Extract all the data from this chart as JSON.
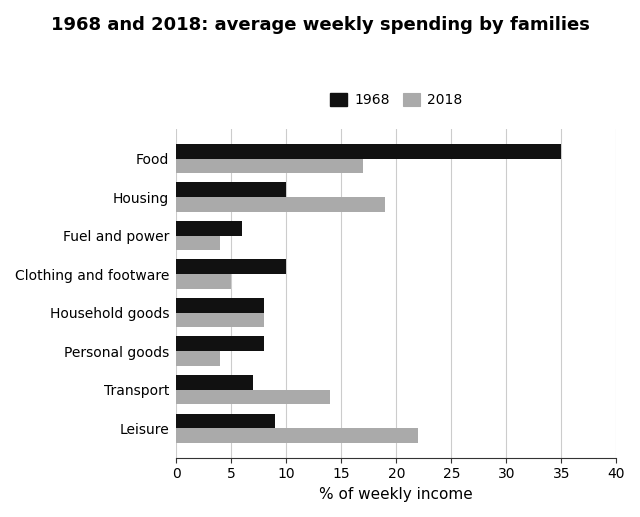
{
  "title": "1968 and 2018: average weekly spending by families",
  "categories": [
    "Food",
    "Housing",
    "Fuel and power",
    "Clothing and footware",
    "Household goods",
    "Personal goods",
    "Transport",
    "Leisure"
  ],
  "values_1968": [
    35,
    10,
    6,
    10,
    8,
    8,
    7,
    9
  ],
  "values_2018": [
    17,
    19,
    4,
    5,
    8,
    4,
    14,
    22
  ],
  "color_1968": "#111111",
  "color_2018": "#aaaaaa",
  "xlabel": "% of weekly income",
  "xlim": [
    0,
    40
  ],
  "xticks": [
    0,
    5,
    10,
    15,
    20,
    25,
    30,
    35,
    40
  ],
  "legend_labels": [
    "1968",
    "2018"
  ],
  "bar_height": 0.38,
  "background_color": "#ffffff",
  "title_fontsize": 13,
  "label_fontsize": 10,
  "xlabel_fontsize": 11
}
